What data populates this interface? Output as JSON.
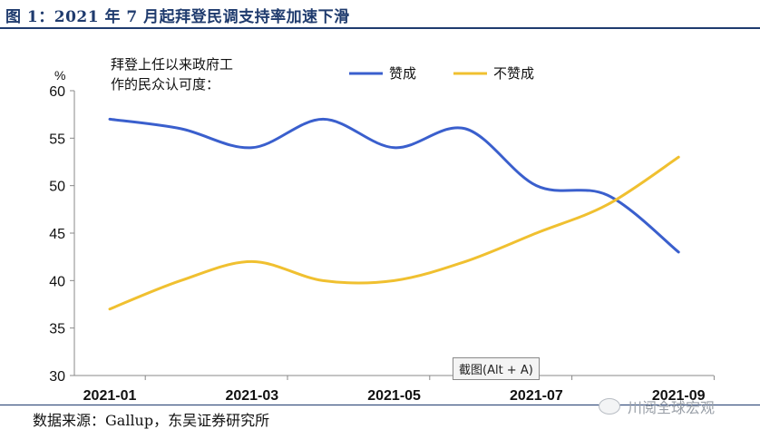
{
  "figure_title": "图 1：2021 年 7 月起拜登民调支持率加速下滑",
  "source_text": "数据来源：Gallup，东吴证券研究所",
  "watermark_text": "川阅全球宏观",
  "tooltip_text": "截图(Alt + A)",
  "chart_data": {
    "type": "line",
    "title": "拜登上任以来政府工作的民众认可度：",
    "title_lines": [
      "拜登上任以来政府工",
      "作的民众认可度："
    ],
    "ylabel": "%",
    "xlabel": "",
    "ylim": [
      30,
      60
    ],
    "yticks": [
      30,
      35,
      40,
      45,
      50,
      55,
      60
    ],
    "x": [
      "2021-01",
      "2021-02",
      "2021-03",
      "2021-04",
      "2021-05",
      "2021-06",
      "2021-07",
      "2021-08",
      "2021-09"
    ],
    "xtick_labels": [
      "2021-01",
      "2021-03",
      "2021-05",
      "2021-07",
      "2021-09"
    ],
    "legend_position": "top",
    "grid": false,
    "series": [
      {
        "name": "赞成",
        "color": "#3a5fcd",
        "values": [
          57,
          56,
          54,
          57,
          54,
          56,
          50,
          49,
          43
        ]
      },
      {
        "name": "不赞成",
        "color": "#f0c030",
        "values": [
          37,
          40,
          42,
          40,
          40,
          42,
          45,
          48,
          53
        ]
      }
    ]
  }
}
